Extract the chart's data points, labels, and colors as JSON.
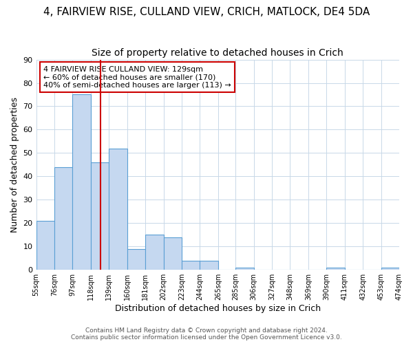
{
  "title": "4, FAIRVIEW RISE, CULLAND VIEW, CRICH, MATLOCK, DE4 5DA",
  "subtitle": "Size of property relative to detached houses in Crich",
  "xlabel": "Distribution of detached houses by size in Crich",
  "ylabel": "Number of detached properties",
  "bin_edges": [
    55,
    76,
    97,
    118,
    139,
    160,
    181,
    202,
    223,
    244,
    265,
    285,
    306,
    327,
    348,
    369,
    390,
    411,
    432,
    453,
    474
  ],
  "bin_labels": [
    "55sqm",
    "76sqm",
    "97sqm",
    "118sqm",
    "139sqm",
    "160sqm",
    "181sqm",
    "202sqm",
    "223sqm",
    "244sqm",
    "265sqm",
    "285sqm",
    "306sqm",
    "327sqm",
    "348sqm",
    "369sqm",
    "390sqm",
    "411sqm",
    "432sqm",
    "453sqm",
    "474sqm"
  ],
  "counts": [
    21,
    44,
    75,
    46,
    52,
    9,
    15,
    14,
    4,
    4,
    0,
    1,
    0,
    0,
    0,
    0,
    1,
    0,
    0,
    1,
    0
  ],
  "bar_color": "#c5d8f0",
  "bar_edge_color": "#5a9fd4",
  "vline_x": 129,
  "vline_color": "#cc0000",
  "ylim": [
    0,
    90
  ],
  "yticks": [
    0,
    10,
    20,
    30,
    40,
    50,
    60,
    70,
    80,
    90
  ],
  "annotation_text": "4 FAIRVIEW RISE CULLAND VIEW: 129sqm\n← 60% of detached houses are smaller (170)\n40% of semi-detached houses are larger (113) →",
  "annotation_box_color": "#ffffff",
  "annotation_box_edge": "#cc0000",
  "footer_line1": "Contains HM Land Registry data © Crown copyright and database right 2024.",
  "footer_line2": "Contains public sector information licensed under the Open Government Licence v3.0.",
  "title_fontsize": 11,
  "subtitle_fontsize": 10,
  "label_fontsize": 9,
  "tick_fontsize": 8,
  "annotation_fontsize": 9
}
